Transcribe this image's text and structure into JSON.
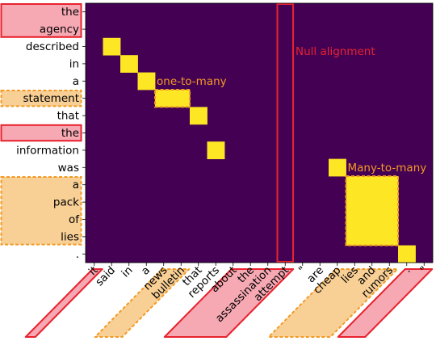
{
  "chart_data": {
    "type": "heatmap",
    "rows": [
      "the",
      "agency",
      "described",
      "in",
      "a",
      "statement",
      "that",
      "the",
      "information",
      "was",
      "a",
      "pack",
      "of",
      "lies",
      "."
    ],
    "cols": [
      "it",
      "said",
      "in",
      "a",
      "news",
      "bulletin",
      "that",
      "reports",
      "about",
      "the",
      "assassination",
      "attempt",
      "\"",
      "are",
      "cheap",
      "lies",
      "and",
      "rumors",
      ".",
      "\""
    ],
    "cells": [
      [
        2,
        1
      ],
      [
        3,
        2
      ],
      [
        4,
        3
      ],
      [
        5,
        4
      ],
      [
        5,
        5
      ],
      [
        6,
        6
      ],
      [
        8,
        7
      ],
      [
        9,
        14
      ],
      [
        10,
        15
      ],
      [
        10,
        16
      ],
      [
        10,
        17
      ],
      [
        11,
        15
      ],
      [
        11,
        16
      ],
      [
        11,
        17
      ],
      [
        12,
        15
      ],
      [
        12,
        16
      ],
      [
        12,
        17
      ],
      [
        13,
        15
      ],
      [
        13,
        16
      ],
      [
        13,
        17
      ],
      [
        14,
        18
      ]
    ],
    "colors": {
      "background": "#440154",
      "cell": "#fde725",
      "red": "#e8222e",
      "red_fill": "#f6a8b3",
      "orange": "#f39a24",
      "orange_fill": "#f8cf95"
    },
    "annotations": [
      {
        "text": "Null alignment",
        "color": "#e8222e",
        "col_span": [
          11,
          11
        ],
        "row_span": [
          0,
          14
        ]
      },
      {
        "text": "one-to-many",
        "color": "#f39a24",
        "rows": [
          5
        ],
        "cols": [
          4,
          5
        ]
      },
      {
        "text": "Many-to-many",
        "color": "#f39a24",
        "rows": [
          10,
          11,
          12,
          13
        ],
        "cols": [
          15,
          16,
          17
        ]
      }
    ],
    "row_highlights": [
      {
        "rows": [
          0,
          1
        ],
        "style": "red"
      },
      {
        "rows": [
          5
        ],
        "style": "orange"
      },
      {
        "rows": [
          7
        ],
        "style": "red"
      },
      {
        "rows": [
          10,
          11,
          12,
          13
        ],
        "style": "orange"
      }
    ],
    "col_highlights": [
      {
        "cols": [
          0
        ],
        "style": "red"
      },
      {
        "cols": [
          4,
          5
        ],
        "style": "orange"
      },
      {
        "cols": [
          8,
          9,
          10,
          11
        ],
        "style": "red"
      },
      {
        "cols": [
          14,
          15,
          16,
          17
        ],
        "style": "orange"
      },
      {
        "cols": [
          18,
          19
        ],
        "style": "red"
      }
    ]
  }
}
